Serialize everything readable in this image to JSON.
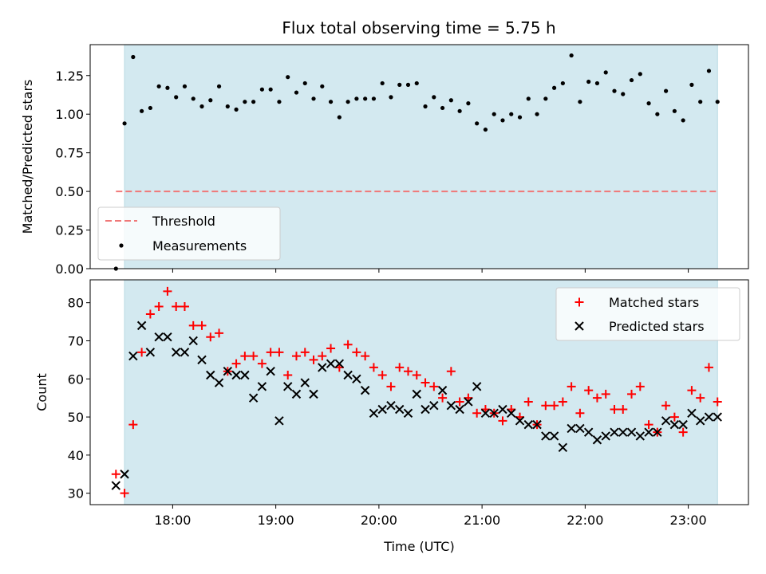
{
  "chart_data": [
    {
      "type": "scatter",
      "title": "Flux total observing time = 5.75 h",
      "xlabel": "",
      "ylabel": "Matched/Predicted stars",
      "ylim": [
        0,
        1.45
      ],
      "xlim": [
        "17:12",
        "23:35"
      ],
      "y_ticks": [
        "0.00",
        "0.25",
        "0.50",
        "0.75",
        "1.00",
        "1.25"
      ],
      "shaded_span": {
        "start": "17:32",
        "end": "23:17",
        "color": "#d3e9f0"
      },
      "legend": {
        "placement": "lower-left",
        "entries": [
          {
            "label": "Threshold",
            "series": "threshold"
          },
          {
            "label": "Measurements",
            "series": "measurements"
          }
        ]
      },
      "series": [
        {
          "name": "Threshold",
          "kind": "dashed-line",
          "color": "#f07878",
          "x": [
            "17:27",
            "23:17"
          ],
          "y": [
            0.5,
            0.5
          ]
        },
        {
          "name": "Measurements",
          "kind": "dot",
          "color": "#000000",
          "x": [
            "17:27",
            "17:32",
            "17:37",
            "17:42",
            "17:47",
            "17:52",
            "17:57",
            "18:02",
            "18:07",
            "18:12",
            "18:17",
            "18:22",
            "18:27",
            "18:32",
            "18:37",
            "18:42",
            "18:47",
            "18:52",
            "18:57",
            "19:02",
            "19:07",
            "19:12",
            "19:17",
            "19:22",
            "19:27",
            "19:32",
            "19:37",
            "19:42",
            "19:47",
            "19:52",
            "19:57",
            "20:02",
            "20:07",
            "20:12",
            "20:17",
            "20:22",
            "20:27",
            "20:32",
            "20:37",
            "20:42",
            "20:47",
            "20:52",
            "20:57",
            "21:02",
            "21:07",
            "21:12",
            "21:17",
            "21:22",
            "21:27",
            "21:32",
            "21:37",
            "21:42",
            "21:47",
            "21:52",
            "21:57",
            "22:02",
            "22:07",
            "22:12",
            "22:17",
            "22:22",
            "22:27",
            "22:32",
            "22:37",
            "22:42",
            "22:47",
            "22:52",
            "22:57",
            "23:02",
            "23:07",
            "23:12",
            "23:17"
          ],
          "y": [
            0.0,
            0.94,
            1.37,
            1.02,
            1.04,
            1.18,
            1.17,
            1.11,
            1.18,
            1.1,
            1.05,
            1.09,
            1.18,
            1.05,
            1.03,
            1.08,
            1.08,
            1.16,
            1.16,
            1.08,
            1.24,
            1.14,
            1.2,
            1.1,
            1.18,
            1.08,
            0.98,
            1.08,
            1.1,
            1.1,
            1.1,
            1.2,
            1.11,
            1.19,
            1.19,
            1.2,
            1.05,
            1.11,
            1.04,
            1.09,
            1.02,
            1.07,
            0.94,
            0.9,
            1.0,
            0.96,
            1.0,
            0.98,
            1.1,
            1.0,
            1.1,
            1.17,
            1.2,
            1.38,
            1.08,
            1.21,
            1.2,
            1.27,
            1.15,
            1.13,
            1.22,
            1.26,
            1.07,
            1.0,
            1.15,
            1.02,
            0.96,
            1.19,
            1.08,
            1.28,
            1.08
          ]
        }
      ]
    },
    {
      "type": "scatter",
      "title": "",
      "xlabel": "Time (UTC)",
      "ylabel": "Count",
      "ylim": [
        27,
        86
      ],
      "xlim": [
        "17:12",
        "23:35"
      ],
      "x_ticks": [
        "18:00",
        "19:00",
        "20:00",
        "21:00",
        "22:00",
        "23:00"
      ],
      "y_ticks": [
        "30",
        "40",
        "50",
        "60",
        "70",
        "80"
      ],
      "shaded_span": {
        "start": "17:32",
        "end": "23:17",
        "color": "#d3e9f0"
      },
      "legend": {
        "placement": "top-right",
        "entries": [
          {
            "label": "Matched stars",
            "series": "matched"
          },
          {
            "label": "Predicted stars",
            "series": "predicted"
          }
        ]
      },
      "series": [
        {
          "name": "Matched stars",
          "kind": "plus",
          "color": "#ff0000",
          "x": [
            "17:27",
            "17:32",
            "17:37",
            "17:42",
            "17:47",
            "17:52",
            "17:57",
            "18:02",
            "18:07",
            "18:12",
            "18:17",
            "18:22",
            "18:27",
            "18:32",
            "18:37",
            "18:42",
            "18:47",
            "18:52",
            "18:57",
            "19:02",
            "19:07",
            "19:12",
            "19:17",
            "19:22",
            "19:27",
            "19:32",
            "19:37",
            "19:42",
            "19:47",
            "19:52",
            "19:57",
            "20:02",
            "20:07",
            "20:12",
            "20:17",
            "20:22",
            "20:27",
            "20:32",
            "20:37",
            "20:42",
            "20:47",
            "20:52",
            "20:57",
            "21:02",
            "21:07",
            "21:12",
            "21:17",
            "21:22",
            "21:27",
            "21:32",
            "21:37",
            "21:42",
            "21:47",
            "21:52",
            "21:57",
            "22:02",
            "22:07",
            "22:12",
            "22:17",
            "22:22",
            "22:27",
            "22:32",
            "22:37",
            "22:42",
            "22:47",
            "22:52",
            "22:57",
            "23:02",
            "23:07",
            "23:12",
            "23:17"
          ],
          "y": [
            35,
            30,
            48,
            67,
            77,
            79,
            83,
            79,
            79,
            74,
            74,
            71,
            72,
            62,
            64,
            66,
            66,
            64,
            67,
            67,
            61,
            66,
            67,
            65,
            66,
            68,
            63,
            69,
            67,
            66,
            63,
            61,
            58,
            63,
            62,
            61,
            59,
            58,
            55,
            62,
            54,
            55,
            51,
            52,
            51,
            49,
            52,
            50,
            54,
            48,
            53,
            53,
            54,
            58,
            51,
            57,
            55,
            56,
            52,
            52,
            56,
            58,
            48,
            46,
            53,
            50,
            46,
            57,
            55,
            63,
            54
          ]
        },
        {
          "name": "Predicted stars",
          "kind": "cross",
          "color": "#000000",
          "x": [
            "17:27",
            "17:32",
            "17:37",
            "17:42",
            "17:47",
            "17:52",
            "17:57",
            "18:02",
            "18:07",
            "18:12",
            "18:17",
            "18:22",
            "18:27",
            "18:32",
            "18:37",
            "18:42",
            "18:47",
            "18:52",
            "18:57",
            "19:02",
            "19:07",
            "19:12",
            "19:17",
            "19:22",
            "19:27",
            "19:32",
            "19:37",
            "19:42",
            "19:47",
            "19:52",
            "19:57",
            "20:02",
            "20:07",
            "20:12",
            "20:17",
            "20:22",
            "20:27",
            "20:32",
            "20:37",
            "20:42",
            "20:47",
            "20:52",
            "20:57",
            "21:02",
            "21:07",
            "21:12",
            "21:17",
            "21:22",
            "21:27",
            "21:32",
            "21:37",
            "21:42",
            "21:47",
            "21:52",
            "21:57",
            "22:02",
            "22:07",
            "22:12",
            "22:17",
            "22:22",
            "22:27",
            "22:32",
            "22:37",
            "22:42",
            "22:47",
            "22:52",
            "22:57",
            "23:02",
            "23:07",
            "23:12",
            "23:17"
          ],
          "y": [
            32,
            35,
            66,
            74,
            67,
            71,
            71,
            67,
            67,
            70,
            65,
            61,
            59,
            62,
            61,
            61,
            55,
            58,
            62,
            49,
            58,
            56,
            59,
            56,
            63,
            64,
            64,
            61,
            60,
            57,
            51,
            52,
            53,
            52,
            51,
            56,
            52,
            53,
            57,
            53,
            52,
            54,
            58,
            51,
            51,
            52,
            51,
            49,
            48,
            48,
            45,
            45,
            42,
            47,
            47,
            46,
            44,
            45,
            46,
            46,
            46,
            45,
            46,
            46,
            49,
            48,
            48,
            51,
            49,
            50,
            50
          ]
        }
      ]
    }
  ]
}
